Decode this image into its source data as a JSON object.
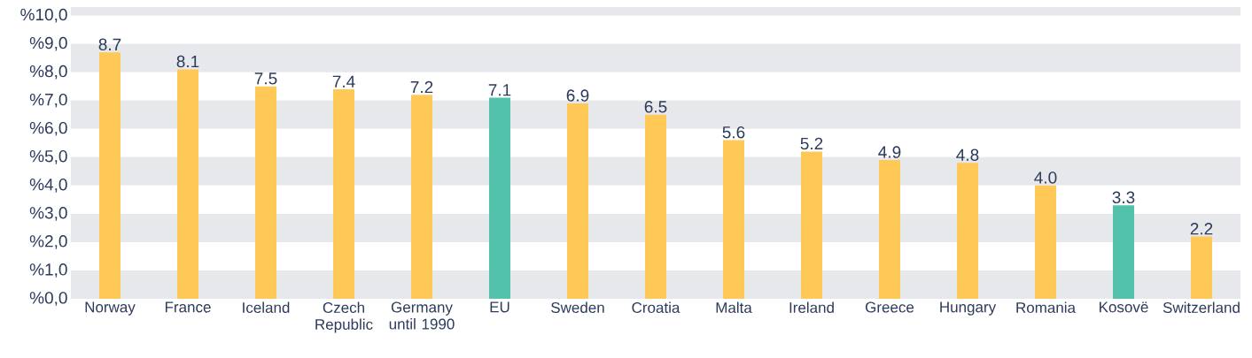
{
  "chart_data": {
    "type": "bar",
    "categories": [
      "Norway",
      "France",
      "Iceland",
      "Czech Republic",
      "Germany until 1990",
      "EU",
      "Sweden",
      "Croatia",
      "Malta",
      "Ireland",
      "Greece",
      "Hungary",
      "Romania",
      "Kosovë",
      "Switzerland"
    ],
    "values": [
      8.7,
      8.1,
      7.5,
      7.4,
      7.2,
      7.1,
      6.9,
      6.5,
      5.6,
      5.2,
      4.9,
      4.8,
      4.0,
      3.3,
      2.2
    ],
    "colors": [
      "#ffc857",
      "#ffc857",
      "#ffc857",
      "#ffc857",
      "#ffc857",
      "#52c2ab",
      "#ffc857",
      "#ffc857",
      "#ffc857",
      "#ffc857",
      "#ffc857",
      "#ffc857",
      "#ffc857",
      "#52c2ab",
      "#ffc857"
    ],
    "ylim": [
      0,
      10.3
    ],
    "yticks": [
      {
        "value": 0,
        "label": "%0,0"
      },
      {
        "value": 1,
        "label": "%1,0"
      },
      {
        "value": 2,
        "label": "%2,0"
      },
      {
        "value": 3,
        "label": "%3,0"
      },
      {
        "value": 4,
        "label": "%4,0"
      },
      {
        "value": 5,
        "label": "%5,0"
      },
      {
        "value": 6,
        "label": "%6,0"
      },
      {
        "value": 7,
        "label": "%7,0"
      },
      {
        "value": 8,
        "label": "%8,0"
      },
      {
        "value": 9,
        "label": "%9,0"
      },
      {
        "value": 10,
        "label": "%10,0"
      }
    ],
    "value_labels": [
      "8.7",
      "8.1",
      "7.5",
      "7.4",
      "7.2",
      "7.1",
      "6.9",
      "6.5",
      "5.6",
      "5.2",
      "4.9",
      "4.8",
      "4.0",
      "3.3",
      "2.2"
    ],
    "bands": [
      {
        "axis": "y",
        "from": 0,
        "to": 1,
        "color": "#e6e8ec"
      },
      {
        "axis": "y",
        "from": 2,
        "to": 3,
        "color": "#e6e8ec"
      },
      {
        "axis": "y",
        "from": 4,
        "to": 5,
        "color": "#e6e8ec"
      },
      {
        "axis": "y",
        "from": 6,
        "to": 7,
        "color": "#e6e8ec"
      },
      {
        "axis": "y",
        "from": 8,
        "to": 9,
        "color": "#e6e8ec"
      },
      {
        "axis": "y",
        "from": 10,
        "to": 10.3,
        "color": "#e6e8ec"
      }
    ]
  }
}
